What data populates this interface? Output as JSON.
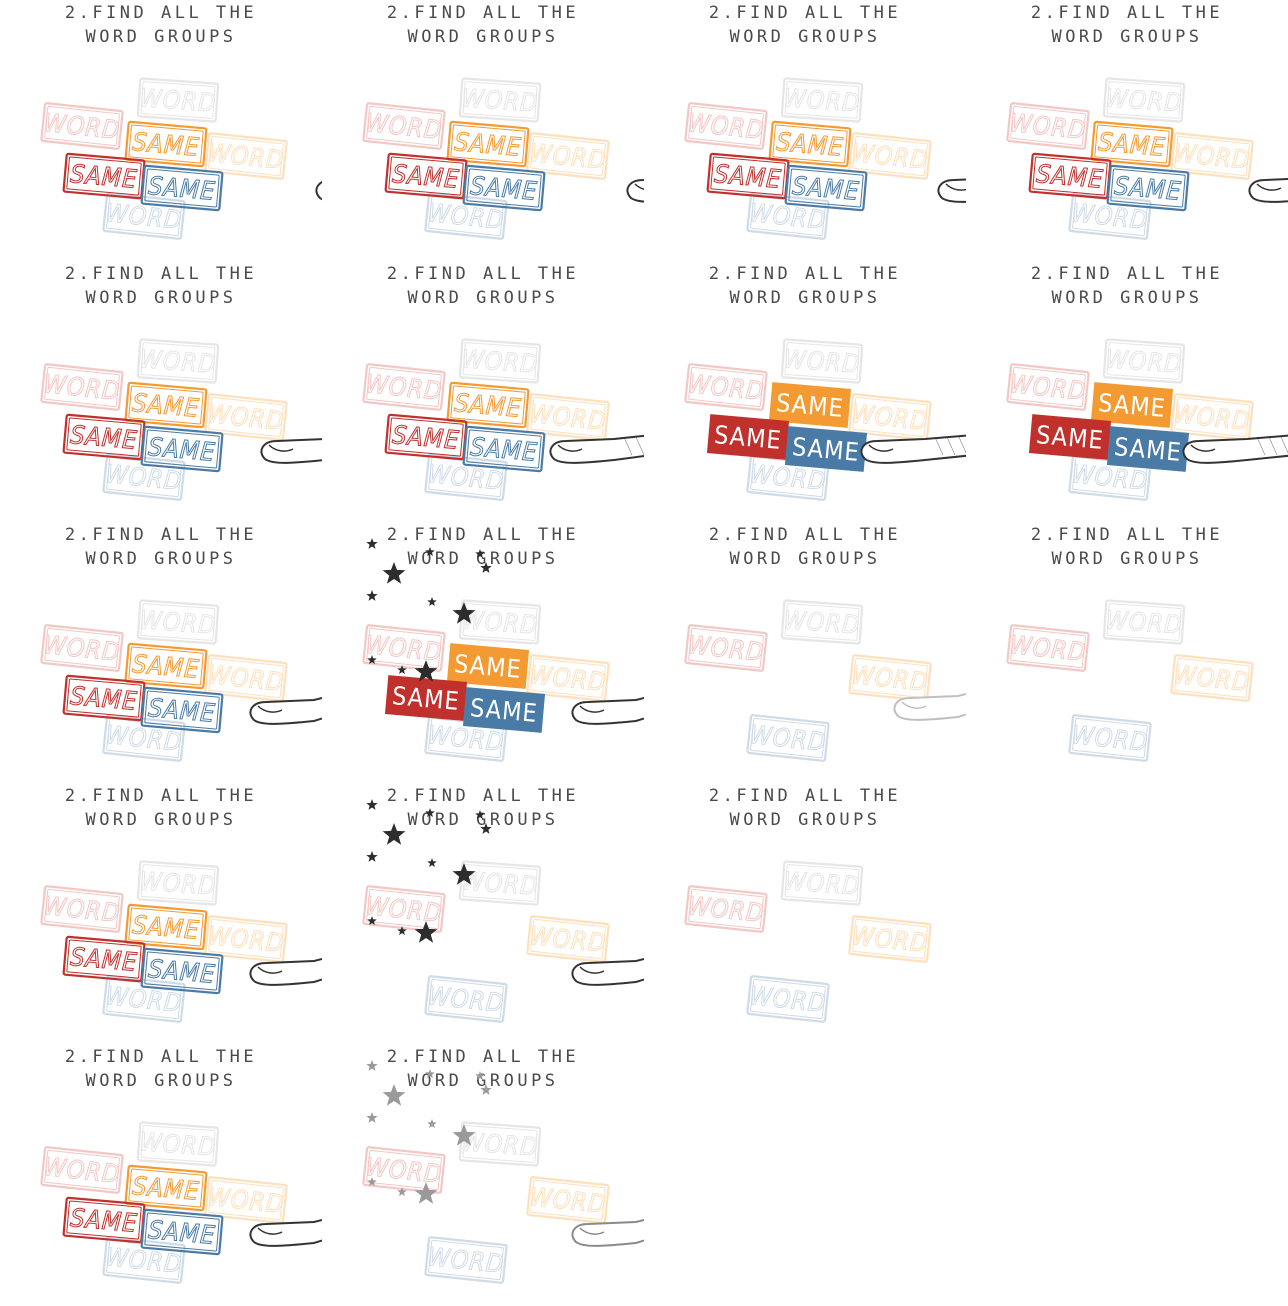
{
  "instruction": {
    "line1": "2.FIND ALL THE",
    "line2": "WORD GROUPS"
  },
  "tiles": {
    "word": "WORD",
    "same": "SAME"
  },
  "colors": {
    "red": "#c0302d",
    "orange": "#f39a32",
    "blue": "#4a7ba6",
    "red_light": "#f2c8c5",
    "orange_light": "#fde0bd",
    "blue_light": "#cfdbe6",
    "gray_light": "#e6e6e6",
    "ink": "#333333"
  },
  "frames": [
    {
      "title": true,
      "same": "outline",
      "finger": 0,
      "stars": "none",
      "words": "full"
    },
    {
      "title": true,
      "same": "outline",
      "finger": 0.1,
      "stars": "none",
      "words": "full"
    },
    {
      "title": true,
      "same": "outline",
      "finger": 0.2,
      "stars": "none",
      "words": "full"
    },
    {
      "title": true,
      "same": "outline",
      "finger": 0.3,
      "stars": "none",
      "words": "full"
    },
    {
      "title": true,
      "same": "outline",
      "finger": 0.5,
      "stars": "none",
      "words": "full"
    },
    {
      "title": true,
      "same": "outline",
      "finger": 0.8,
      "stars": "none",
      "words": "full"
    },
    {
      "title": true,
      "same": "filled",
      "finger": 0.9,
      "stars": "none",
      "words": "full"
    },
    {
      "title": true,
      "same": "filled",
      "finger": 0.9,
      "stars": "none",
      "words": "full"
    },
    {
      "title": true,
      "same": "outline",
      "finger": 0.6,
      "stars": "none",
      "words": "full"
    },
    {
      "title": true,
      "same": "filled",
      "finger": 0.6,
      "stars": "dark",
      "words": "full"
    },
    {
      "title": true,
      "same": "none",
      "finger": 0.6,
      "stars": "none",
      "words": "split",
      "fingerFaded": true
    },
    {
      "title": true,
      "same": "none",
      "finger": -1,
      "stars": "none",
      "words": "split"
    },
    {
      "title": true,
      "same": "outline",
      "finger": 0.6,
      "stars": "none",
      "words": "full"
    },
    {
      "title": true,
      "same": "none",
      "finger": 0.6,
      "stars": "dark",
      "words": "partial"
    },
    {
      "title": true,
      "same": "none",
      "finger": -1,
      "stars": "none",
      "words": "split"
    },
    {
      "title": false,
      "same": "none",
      "finger": -1,
      "stars": "none",
      "words": "blank"
    },
    {
      "title": true,
      "same": "outline",
      "finger": 0.6,
      "stars": "none",
      "words": "full"
    },
    {
      "title": true,
      "same": "none",
      "finger": 0.6,
      "stars": "gray",
      "words": "partial",
      "fingerGray": true
    }
  ]
}
